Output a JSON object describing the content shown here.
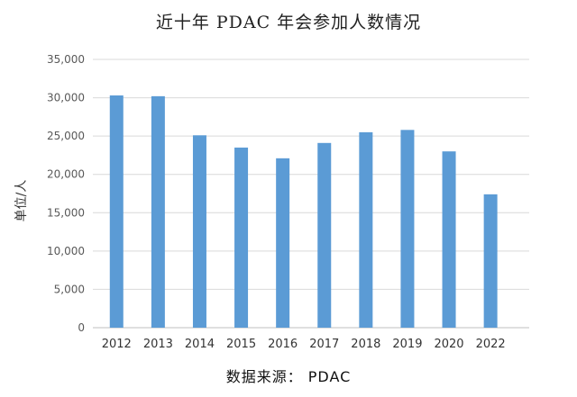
{
  "chart_data": {
    "type": "bar",
    "title": "近十年 PDAC 年会参加人数情况",
    "xlabel": "",
    "ylabel": "单位/人",
    "source": "数据来源： PDAC",
    "categories": [
      "2012",
      "2013",
      "2014",
      "2015",
      "2016",
      "2017",
      "2018",
      "2019",
      "2020",
      "2022"
    ],
    "values": [
      30300,
      30200,
      25100,
      23500,
      22100,
      24100,
      25500,
      25800,
      23000,
      17400
    ],
    "ylim": [
      0,
      35000
    ],
    "yticks": [
      0,
      5000,
      10000,
      15000,
      20000,
      25000,
      30000,
      35000
    ],
    "ytick_labels": [
      "0",
      "5,000",
      "10,000",
      "15,000",
      "20,000",
      "25,000",
      "30,000",
      "35,000"
    ],
    "grid": true,
    "legend": "none",
    "colors": {
      "bar": "#5B9BD5",
      "grid": "#d9d9d9",
      "axis": "#bfbfbf",
      "tick_text": "#595959"
    }
  }
}
